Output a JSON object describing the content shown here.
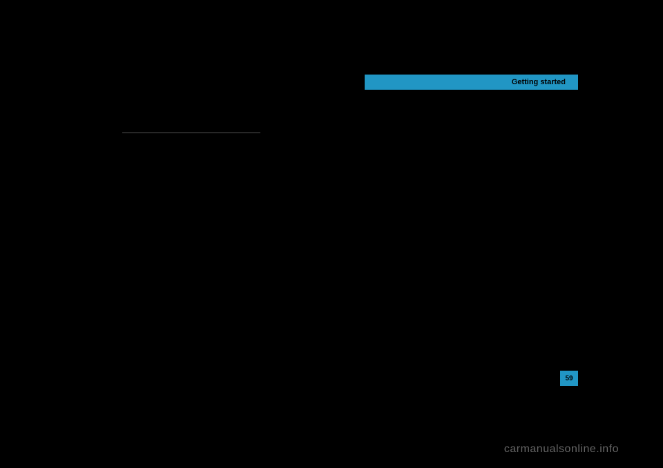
{
  "header": {
    "title": "Getting started",
    "bg_color": "#2196c4",
    "text_color": "#000000"
  },
  "page": {
    "number": "59",
    "bg_color": "#2196c4",
    "text_color": "#000000"
  },
  "watermark": {
    "text": "carmanualsonline.info",
    "color": "#666666"
  },
  "background_color": "#000000",
  "divider_color": "#555555"
}
